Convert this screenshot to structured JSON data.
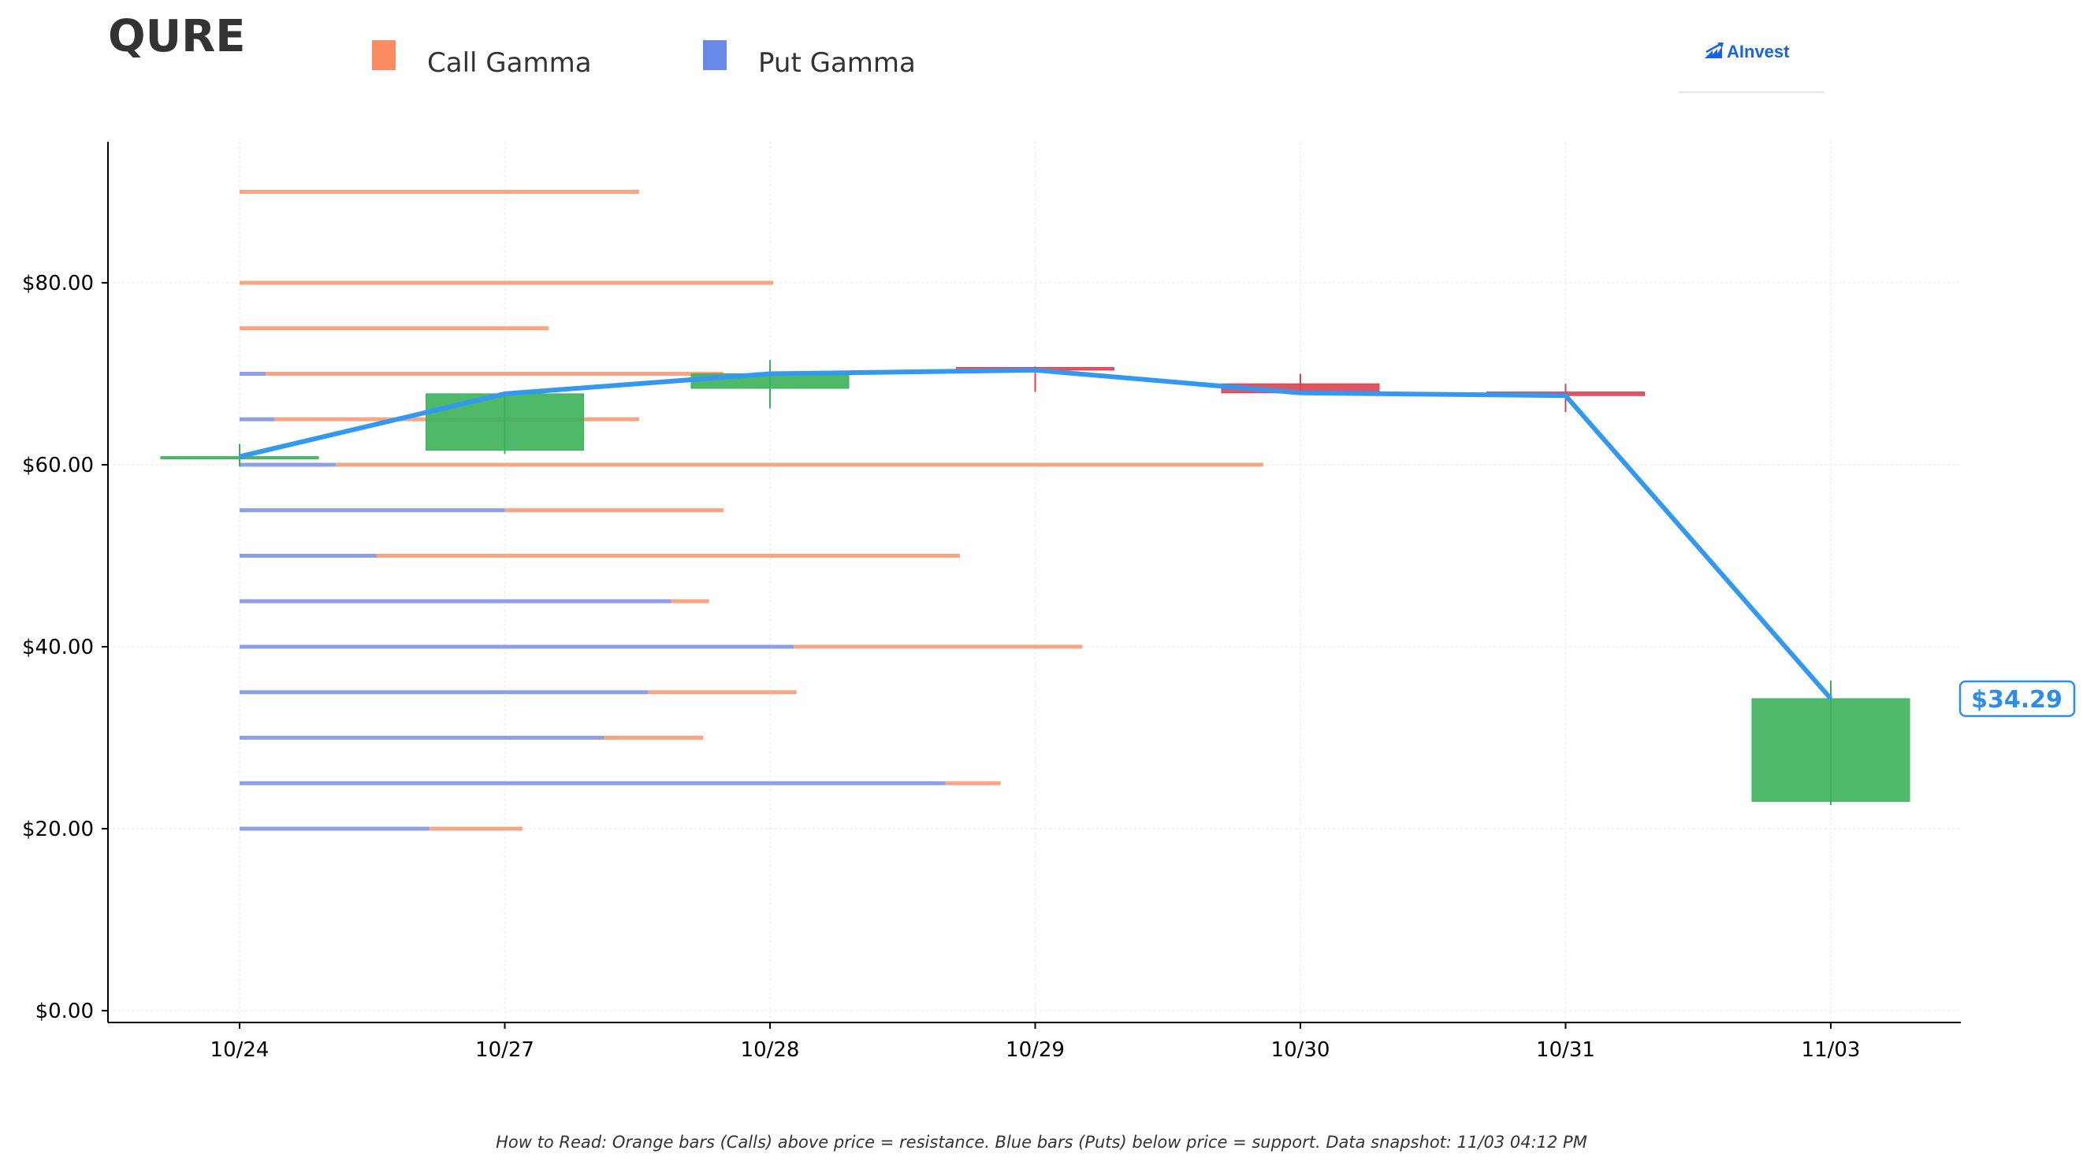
{
  "header": {
    "ticker": "QURE",
    "brand": "AInvest"
  },
  "legend": [
    {
      "label": "Call Gamma",
      "color": "#fc8d62"
    },
    {
      "label": "Put Gamma",
      "color": "#6a89e6"
    }
  ],
  "footnote": "How to Read: Orange bars (Calls) above price = resistance. Blue bars (Puts) below price = support. Data snapshot: 11/03 04:12 PM",
  "colors": {
    "call": "#f7a582",
    "put": "#8da0e6",
    "up_candle": "#3cb15a",
    "down_candle": "#d94452",
    "price_line": "#3399f0",
    "price_tag": "#2e8de8"
  },
  "chart_data": {
    "type": "candlestick",
    "title": "",
    "xlabel": "",
    "ylabel": "",
    "ylim": [
      0,
      95
    ],
    "yticks": [
      0,
      20,
      40,
      60,
      80
    ],
    "ytick_labels": [
      "$0.00",
      "$20.00",
      "$40.00",
      "$60.00",
      "$80.00"
    ],
    "categories": [
      "10/24",
      "10/27",
      "10/28",
      "10/29",
      "10/30",
      "10/31",
      "11/03"
    ],
    "grid": true,
    "candles": [
      {
        "date": "10/24",
        "open": 60.8,
        "high": 62.3,
        "low": 59.8,
        "close": 60.9
      },
      {
        "date": "10/27",
        "open": 61.6,
        "high": 67.8,
        "low": 61.2,
        "close": 67.8
      },
      {
        "date": "10/28",
        "open": 68.4,
        "high": 71.5,
        "low": 66.2,
        "close": 70.0
      },
      {
        "date": "10/29",
        "open": 70.7,
        "high": 70.8,
        "low": 68.0,
        "close": 70.4
      },
      {
        "date": "10/30",
        "open": 68.9,
        "high": 70.0,
        "low": 67.7,
        "close": 67.9
      },
      {
        "date": "10/31",
        "open": 68.0,
        "high": 68.9,
        "low": 65.8,
        "close": 67.6
      },
      {
        "date": "11/03",
        "open": 23.0,
        "high": 36.3,
        "low": 22.6,
        "close": 34.29
      }
    ],
    "price_line": [
      60.9,
      67.8,
      70.0,
      70.4,
      67.9,
      67.6,
      34.29
    ],
    "last_price_label": "$34.29",
    "gamma_strikes": [
      {
        "strike": 90,
        "call": 1.37,
        "put": 0
      },
      {
        "strike": 80,
        "call": 1.83,
        "put": 0
      },
      {
        "strike": 75,
        "call": 1.06,
        "put": 0
      },
      {
        "strike": 70,
        "call": 1.57,
        "put": 0.09
      },
      {
        "strike": 65,
        "call": 1.25,
        "put": 0.12
      },
      {
        "strike": 60,
        "call": 3.18,
        "put": 0.33
      },
      {
        "strike": 55,
        "call": 0.75,
        "put": 0.91
      },
      {
        "strike": 50,
        "call": 2.0,
        "put": 0.47
      },
      {
        "strike": 45,
        "call": 0.13,
        "put": 1.48
      },
      {
        "strike": 40,
        "call": 0.99,
        "put": 1.9
      },
      {
        "strike": 35,
        "call": 0.51,
        "put": 1.4
      },
      {
        "strike": 30,
        "call": 0.34,
        "put": 1.25
      },
      {
        "strike": 25,
        "call": 0.19,
        "put": 2.42
      },
      {
        "strike": 20,
        "call": 0.32,
        "put": 0.65
      }
    ]
  }
}
